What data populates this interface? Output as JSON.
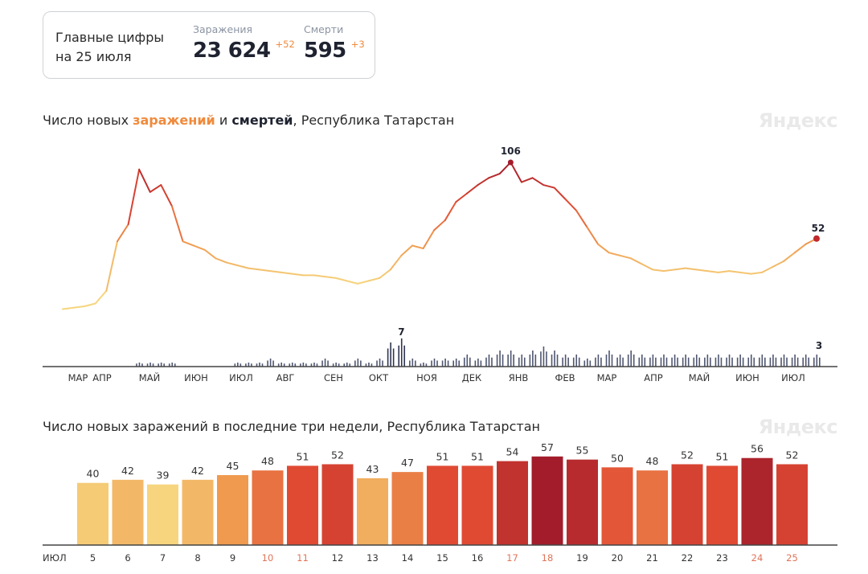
{
  "summary": {
    "caption_line1": "Главные цифры",
    "caption_line2": "на 25 июля",
    "infections": {
      "label": "Заражения",
      "value": "23 624",
      "delta": "+52"
    },
    "deaths": {
      "label": "Смерти",
      "value": "595",
      "delta": "+3"
    }
  },
  "brand": "Яндекс",
  "chart_data": [
    {
      "type": "line",
      "title": {
        "prefix": "Число новых ",
        "infections_word": "заражений",
        "middle": " и ",
        "deaths_word": "смертей",
        "suffix": ", Республика Татарстан"
      },
      "x_ticks": [
        "МАР",
        "АПР",
        "МАЙ",
        "ИЮН",
        "ИЮЛ",
        "АВГ",
        "СЕН",
        "ОКТ",
        "НОЯ",
        "ДЕК",
        "ЯНВ",
        "ФЕВ",
        "МАР",
        "АПР",
        "МАЙ",
        "ИЮН",
        "ИЮЛ"
      ],
      "series": [
        {
          "name": "Заражения",
          "kind": "line",
          "peak_label": "106",
          "last_label": "52",
          "values_weekly_approx": [
            2,
            3,
            4,
            6,
            15,
            50,
            62,
            101,
            85,
            90,
            75,
            50,
            47,
            44,
            38,
            35,
            33,
            31,
            30,
            29,
            28,
            27,
            26,
            26,
            25,
            24,
            22,
            20,
            22,
            24,
            30,
            40,
            47,
            45,
            58,
            65,
            78,
            84,
            90,
            95,
            98,
            106,
            92,
            95,
            90,
            88,
            80,
            72,
            60,
            48,
            42,
            40,
            38,
            34,
            30,
            29,
            30,
            31,
            30,
            29,
            28,
            29,
            28,
            27,
            28,
            32,
            36,
            42,
            48,
            52
          ]
        },
        {
          "name": "Смерти",
          "kind": "bar",
          "peak_label": "7",
          "last_label": "3",
          "values_weekly_approx": [
            0,
            0,
            0,
            0,
            0,
            0,
            0,
            1,
            1,
            1,
            1,
            0,
            0,
            0,
            0,
            0,
            1,
            1,
            1,
            2,
            1,
            1,
            1,
            1,
            2,
            1,
            1,
            2,
            1,
            2,
            6,
            7,
            2,
            1,
            2,
            2,
            2,
            3,
            2,
            3,
            4,
            4,
            3,
            4,
            5,
            4,
            3,
            3,
            2,
            3,
            4,
            3,
            4,
            3,
            3,
            3,
            3,
            3,
            3,
            3,
            3,
            3,
            3,
            3,
            3,
            3,
            3,
            3,
            3,
            3
          ]
        }
      ]
    },
    {
      "type": "bar",
      "title": "Число новых заражений в последние три недели, Республика Татарстан",
      "month_label": "ИЮЛ",
      "categories": [
        "5",
        "6",
        "7",
        "8",
        "9",
        "10",
        "11",
        "12",
        "13",
        "14",
        "15",
        "16",
        "17",
        "18",
        "19",
        "20",
        "21",
        "22",
        "23",
        "24",
        "25"
      ],
      "weekend_days": [
        "10",
        "11",
        "17",
        "18",
        "24",
        "25"
      ],
      "values": [
        40,
        42,
        39,
        42,
        45,
        48,
        51,
        52,
        43,
        47,
        51,
        51,
        54,
        57,
        55,
        50,
        48,
        52,
        51,
        56,
        52
      ],
      "ylim": [
        0,
        60
      ]
    }
  ],
  "colors": {
    "low": "#f6d57e",
    "mid": "#ef9a4f",
    "high": "#e04a33",
    "top": "#a21c2b",
    "deaths_bar": "#4f5670",
    "weekend_tick": "#e0745a",
    "axis": "#444444"
  }
}
